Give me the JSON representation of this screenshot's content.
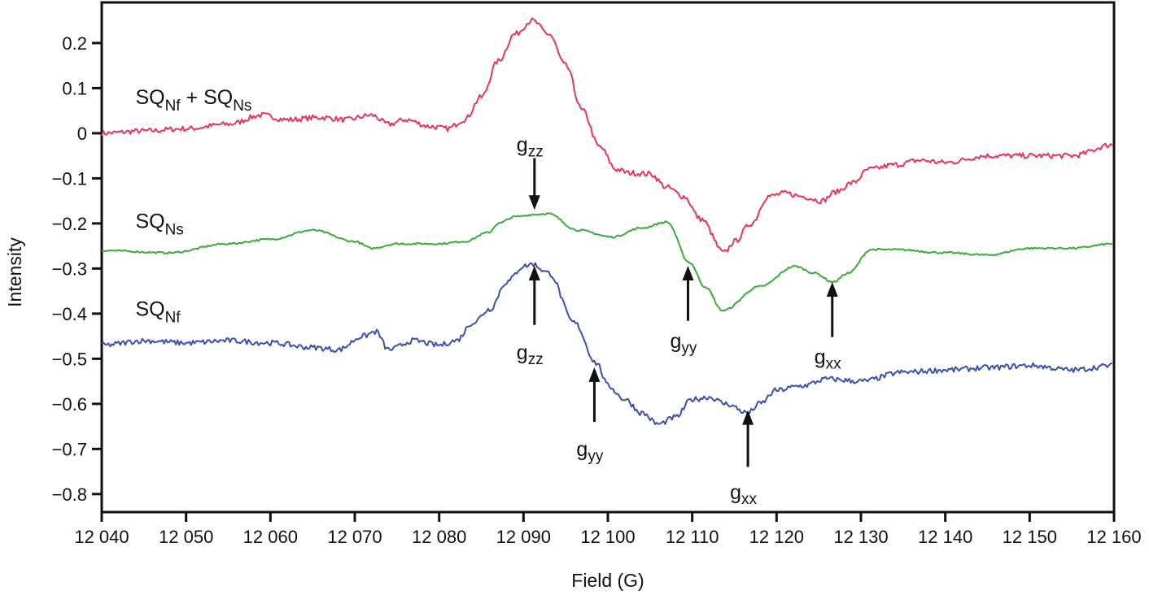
{
  "chart_data": {
    "type": "line",
    "title": "",
    "xlabel": "Field (G)",
    "ylabel": "Intensity",
    "xlim": [
      12040,
      12160
    ],
    "ylim": [
      -0.84,
      0.29
    ],
    "grid": false,
    "x_ticks": [
      12040,
      12050,
      12060,
      12070,
      12080,
      12090,
      12100,
      12110,
      12120,
      12130,
      12140,
      12150,
      12160
    ],
    "x_tick_labels": [
      "12 040",
      "12 050",
      "12 060",
      "12 070",
      "12 080",
      "12 090",
      "12 100",
      "12 110",
      "12 120",
      "12 130",
      "12 140",
      "12 150",
      "12 160"
    ],
    "y_ticks": [
      0.2,
      0.1,
      0,
      -0.1,
      -0.2,
      -0.3,
      -0.4,
      -0.5,
      -0.6,
      -0.7,
      -0.8
    ],
    "y_tick_labels": [
      "0.2",
      "0.1",
      "0",
      "−0.1",
      "−0.2",
      "−0.3",
      "−0.4",
      "−0.5",
      "−0.6",
      "−0.7",
      "−0.8"
    ],
    "series": [
      {
        "name": "SQNf + SQNs",
        "label_parts": [
          {
            "t": "SQ",
            "sub": false
          },
          {
            "t": "Nf",
            "sub": true
          },
          {
            "t": " + SQ",
            "sub": false
          },
          {
            "t": "Ns",
            "sub": true
          }
        ],
        "label_at": [
          12044,
          0.065
        ],
        "color": "#e8345a",
        "noise": 0.006,
        "x": [
          12040,
          12045,
          12050,
          12055,
          12059,
          12062,
          12066,
          12069,
          12072,
          12074,
          12076,
          12079,
          12081,
          12083,
          12085,
          12087,
          12089,
          12091,
          12093,
          12095,
          12097,
          12099,
          12101,
          12102.5,
          12105,
          12107,
          12109,
          12111,
          12113.8,
          12115,
          12117,
          12119,
          12121,
          12123,
          12125.4,
          12127,
          12129,
          12131,
          12134,
          12137,
          12140,
          12145,
          12150,
          12155,
          12160
        ],
        "y": [
          0,
          0.005,
          0.01,
          0.02,
          0.04,
          0.03,
          0.035,
          0.03,
          0.04,
          0.02,
          0.03,
          0.015,
          0.01,
          0.03,
          0.08,
          0.16,
          0.22,
          0.25,
          0.22,
          0.15,
          0.05,
          -0.03,
          -0.08,
          -0.088,
          -0.09,
          -0.12,
          -0.14,
          -0.19,
          -0.265,
          -0.24,
          -0.2,
          -0.14,
          -0.133,
          -0.14,
          -0.15,
          -0.13,
          -0.11,
          -0.08,
          -0.07,
          -0.06,
          -0.065,
          -0.05,
          -0.05,
          -0.05,
          -0.025
        ]
      },
      {
        "name": "SQNs",
        "label_parts": [
          {
            "t": "SQ",
            "sub": false
          },
          {
            "t": "Ns",
            "sub": true
          }
        ],
        "label_at": [
          12044,
          -0.21
        ],
        "color": "#3aaa3a",
        "noise": 0.002,
        "x": [
          12040,
          12048,
          12055,
          12060,
          12065,
          12070,
          12072,
          12075,
          12080,
          12083,
          12085.9,
          12087,
          12089,
          12091.4,
          12092.8,
          12096.5,
          12100.5,
          12104,
          12107,
          12109.7,
          12111.5,
          12113.6,
          12118,
          12122.2,
          12124.5,
          12126.7,
          12128.5,
          12131.2,
          12134,
          12140,
          12145,
          12150,
          12155,
          12160
        ],
        "y": [
          -0.26,
          -0.265,
          -0.245,
          -0.235,
          -0.215,
          -0.24,
          -0.255,
          -0.245,
          -0.245,
          -0.24,
          -0.22,
          -0.2,
          -0.185,
          -0.18,
          -0.178,
          -0.215,
          -0.23,
          -0.21,
          -0.197,
          -0.287,
          -0.34,
          -0.393,
          -0.34,
          -0.295,
          -0.31,
          -0.33,
          -0.31,
          -0.258,
          -0.258,
          -0.265,
          -0.27,
          -0.255,
          -0.255,
          -0.245
        ]
      },
      {
        "name": "SQNf",
        "label_parts": [
          {
            "t": "SQ",
            "sub": false
          },
          {
            "t": "Nf",
            "sub": true
          }
        ],
        "label_at": [
          12044,
          -0.405
        ],
        "color": "#3a4fb0",
        "noise": 0.006,
        "x": [
          12040,
          12045,
          12050,
          12055,
          12060,
          12065,
          12068,
          12071,
          12072.5,
          12074,
          12077,
          12080,
          12082,
          12084,
          12086,
          12088,
          12090,
          12091,
          12093,
          12096,
          12098.7,
          12100,
          12102,
          12104,
          12106,
          12108,
          12110,
          12112,
          12114,
          12116.6,
          12118,
          12120,
          12123,
          12126,
          12130,
          12135,
          12140,
          12145,
          12150,
          12155,
          12160
        ],
        "y": [
          -0.47,
          -0.46,
          -0.465,
          -0.46,
          -0.465,
          -0.475,
          -0.48,
          -0.45,
          -0.44,
          -0.48,
          -0.46,
          -0.47,
          -0.46,
          -0.42,
          -0.39,
          -0.33,
          -0.295,
          -0.29,
          -0.31,
          -0.42,
          -0.51,
          -0.56,
          -0.59,
          -0.62,
          -0.645,
          -0.63,
          -0.59,
          -0.585,
          -0.6,
          -0.62,
          -0.6,
          -0.57,
          -0.56,
          -0.545,
          -0.55,
          -0.53,
          -0.525,
          -0.52,
          -0.515,
          -0.525,
          -0.515
        ]
      }
    ],
    "annotations": [
      {
        "main": "g",
        "sub": "zz",
        "x": 12091.3,
        "label_y": -0.03,
        "arrow_from": -0.055,
        "arrow_to": -0.17
      },
      {
        "main": "g",
        "sub": "zz",
        "x": 12091.3,
        "label_y": -0.49,
        "arrow_from": -0.425,
        "arrow_to": -0.294
      },
      {
        "main": "g",
        "sub": "yy",
        "x": 12098.4,
        "label_y": -0.705,
        "arrow_from": -0.64,
        "arrow_to": -0.519
      },
      {
        "main": "g",
        "sub": "yy",
        "x": 12109.5,
        "label_y": -0.465,
        "arrow_from": -0.416,
        "arrow_to": -0.294
      },
      {
        "main": "g",
        "sub": "xx",
        "x": 12126.6,
        "label_y": -0.5,
        "arrow_from": -0.452,
        "arrow_to": -0.33
      },
      {
        "main": "g",
        "sub": "xx",
        "x": 12116.6,
        "label_y": -0.8,
        "arrow_from": -0.74,
        "arrow_to": -0.614
      }
    ]
  }
}
